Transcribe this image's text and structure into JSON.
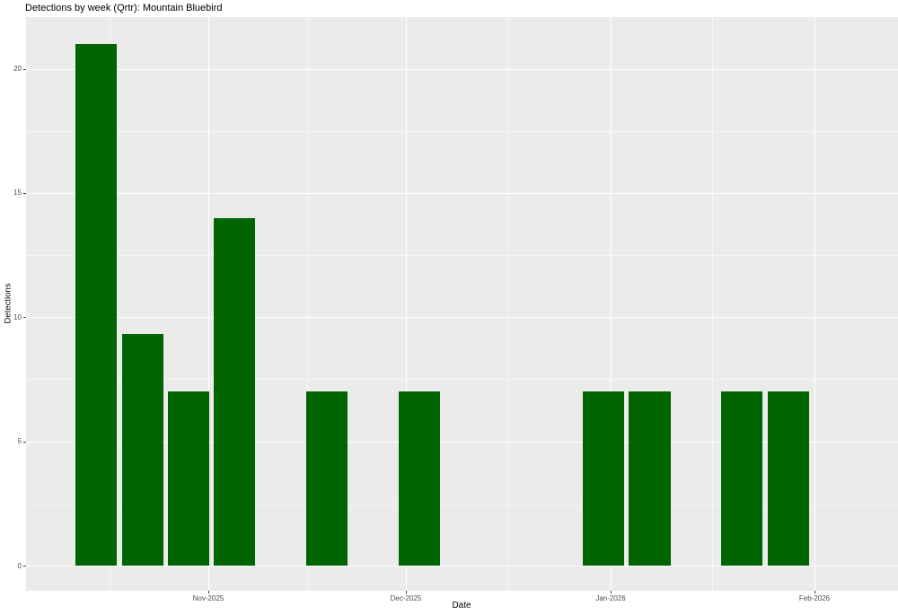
{
  "chart_data": {
    "type": "bar",
    "title": "Detections by week (Qrtr): Mountain Bluebird",
    "xlabel": "Date",
    "ylabel": "Detections",
    "bin": "week",
    "x": [
      "2025-10-15",
      "2025-10-22",
      "2025-10-29",
      "2025-11-05",
      "2025-11-19",
      "2025-12-03",
      "2025-12-31",
      "2026-01-07",
      "2026-01-21",
      "2026-01-28"
    ],
    "values": [
      21,
      9.33,
      7,
      14,
      7,
      7,
      7,
      7,
      7,
      7
    ],
    "x_ticks": [
      {
        "label": "Nov-2025",
        "date": "2025-11-01"
      },
      {
        "label": "Dec-2025",
        "date": "2025-12-01"
      },
      {
        "label": "Jan-2026",
        "date": "2026-01-01"
      },
      {
        "label": "Feb-2026",
        "date": "2026-02-01"
      }
    ],
    "y_ticks": [
      0,
      5,
      10,
      15,
      20
    ],
    "y_minor_ticks": [
      2.5,
      7.5,
      12.5,
      17.5
    ],
    "ylim": [
      0,
      21
    ],
    "bar_width_days": 6.3,
    "grid": "on",
    "legend": "none",
    "colors": {
      "bar": "#006400",
      "panel_bg": "#EBEBEB",
      "grid": "#FFFFFF",
      "tick_text": "#4D4D4D",
      "title_text": "#000000"
    }
  }
}
